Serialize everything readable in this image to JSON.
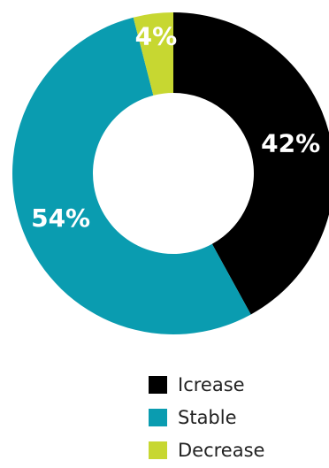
{
  "chart_data": {
    "type": "pie",
    "donut": true,
    "series": [
      {
        "name": "Icrease",
        "value": 42,
        "label": "42%",
        "color": "#000000"
      },
      {
        "name": "Stable",
        "value": 54,
        "label": "54%",
        "color": "#0a9cb0"
      },
      {
        "name": "Decrease",
        "value": 4,
        "label": "4%",
        "color": "#c7d731"
      }
    ],
    "legend": "bottom-right"
  }
}
